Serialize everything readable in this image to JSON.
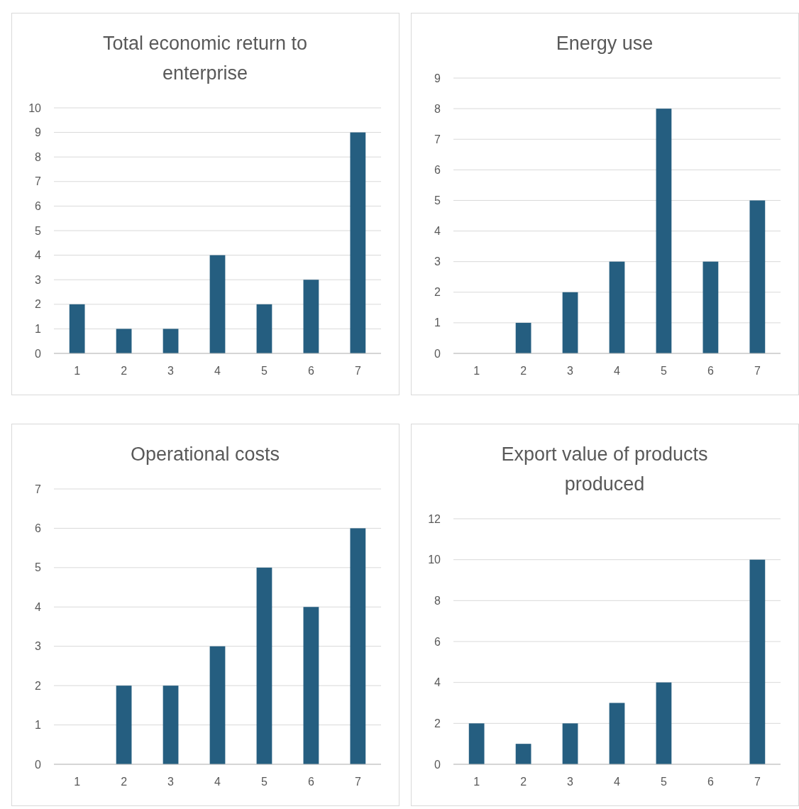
{
  "chart_data": [
    {
      "type": "bar",
      "title": "Total economic return to enterprise",
      "categories": [
        "1",
        "2",
        "3",
        "4",
        "5",
        "6",
        "7"
      ],
      "values": [
        2,
        1,
        1,
        4,
        2,
        3,
        9
      ],
      "color": "#255e80",
      "ylim": [
        0,
        10
      ],
      "yticks": [
        0,
        1,
        2,
        3,
        4,
        5,
        6,
        7,
        8,
        9,
        10
      ],
      "grid": "y"
    },
    {
      "type": "bar",
      "title": "Energy use",
      "categories": [
        "1",
        "2",
        "3",
        "4",
        "5",
        "6",
        "7"
      ],
      "values": [
        0,
        1,
        2,
        3,
        8,
        3,
        5
      ],
      "color": "#255e80",
      "ylim": [
        0,
        9
      ],
      "yticks": [
        0,
        1,
        2,
        3,
        4,
        5,
        6,
        7,
        8,
        9
      ],
      "grid": "y"
    },
    {
      "type": "bar",
      "title": "Operational costs",
      "categories": [
        "1",
        "2",
        "3",
        "4",
        "5",
        "6",
        "7"
      ],
      "values": [
        0,
        2,
        2,
        3,
        5,
        4,
        6
      ],
      "color": "#255e80",
      "ylim": [
        0,
        7
      ],
      "yticks": [
        0,
        1,
        2,
        3,
        4,
        5,
        6,
        7
      ],
      "grid": "y"
    },
    {
      "type": "bar",
      "title": "Export value of products produced",
      "categories": [
        "1",
        "2",
        "3",
        "4",
        "5",
        "6",
        "7"
      ],
      "values": [
        2,
        1,
        2,
        3,
        4,
        0,
        10
      ],
      "color": "#255e80",
      "ylim": [
        0,
        12
      ],
      "yticks": [
        0,
        2,
        4,
        6,
        8,
        10,
        12
      ],
      "grid": "y"
    }
  ]
}
